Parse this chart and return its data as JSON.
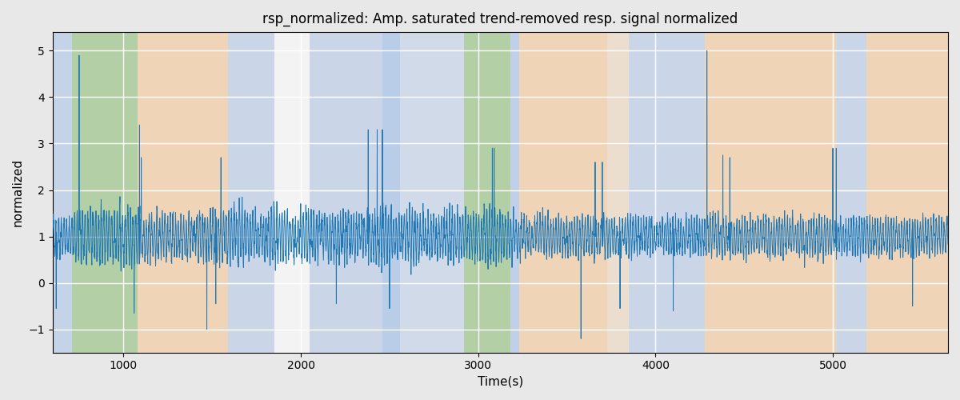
{
  "title": "rsp_normalized: Amp. saturated trend-removed resp. signal normalized",
  "xlabel": "Time(s)",
  "ylabel": "normalized",
  "xlim": [
    600,
    5650
  ],
  "ylim": [
    -1.5,
    5.4
  ],
  "yticks": [
    -1,
    0,
    1,
    2,
    3,
    4,
    5
  ],
  "signal_color": "#1f77b4",
  "signal_linewidth": 0.7,
  "fig_facecolor": "#e8e8e8",
  "ax_facecolor": "#e8e8e8",
  "bands": [
    {
      "xmin": 600,
      "xmax": 710,
      "color": "#aec6e8",
      "alpha": 0.6
    },
    {
      "xmin": 710,
      "xmax": 1080,
      "color": "#8fbf7a",
      "alpha": 0.6
    },
    {
      "xmin": 1080,
      "xmax": 1590,
      "color": "#f5c897",
      "alpha": 0.6
    },
    {
      "xmin": 1590,
      "xmax": 1850,
      "color": "#aec6e8",
      "alpha": 0.5
    },
    {
      "xmin": 1850,
      "xmax": 2050,
      "color": "#ffffff",
      "alpha": 0.5
    },
    {
      "xmin": 2050,
      "xmax": 2460,
      "color": "#aec6e8",
      "alpha": 0.5
    },
    {
      "xmin": 2460,
      "xmax": 2560,
      "color": "#aec6e8",
      "alpha": 0.8
    },
    {
      "xmin": 2560,
      "xmax": 2920,
      "color": "#aec6e8",
      "alpha": 0.4
    },
    {
      "xmin": 2920,
      "xmax": 3180,
      "color": "#8fbf7a",
      "alpha": 0.6
    },
    {
      "xmin": 3180,
      "xmax": 3230,
      "color": "#aec6e8",
      "alpha": 0.7
    },
    {
      "xmin": 3230,
      "xmax": 3730,
      "color": "#f5c897",
      "alpha": 0.6
    },
    {
      "xmin": 3730,
      "xmax": 3850,
      "color": "#f5c897",
      "alpha": 0.3
    },
    {
      "xmin": 3850,
      "xmax": 4280,
      "color": "#aec6e8",
      "alpha": 0.5
    },
    {
      "xmin": 4280,
      "xmax": 5020,
      "color": "#f5c897",
      "alpha": 0.6
    },
    {
      "xmin": 5020,
      "xmax": 5190,
      "color": "#aec6e8",
      "alpha": 0.5
    },
    {
      "xmin": 5190,
      "xmax": 5650,
      "color": "#f5c897",
      "alpha": 0.6
    }
  ],
  "seed": 42,
  "n_points": 5000,
  "t_start": 600,
  "t_end": 5650
}
